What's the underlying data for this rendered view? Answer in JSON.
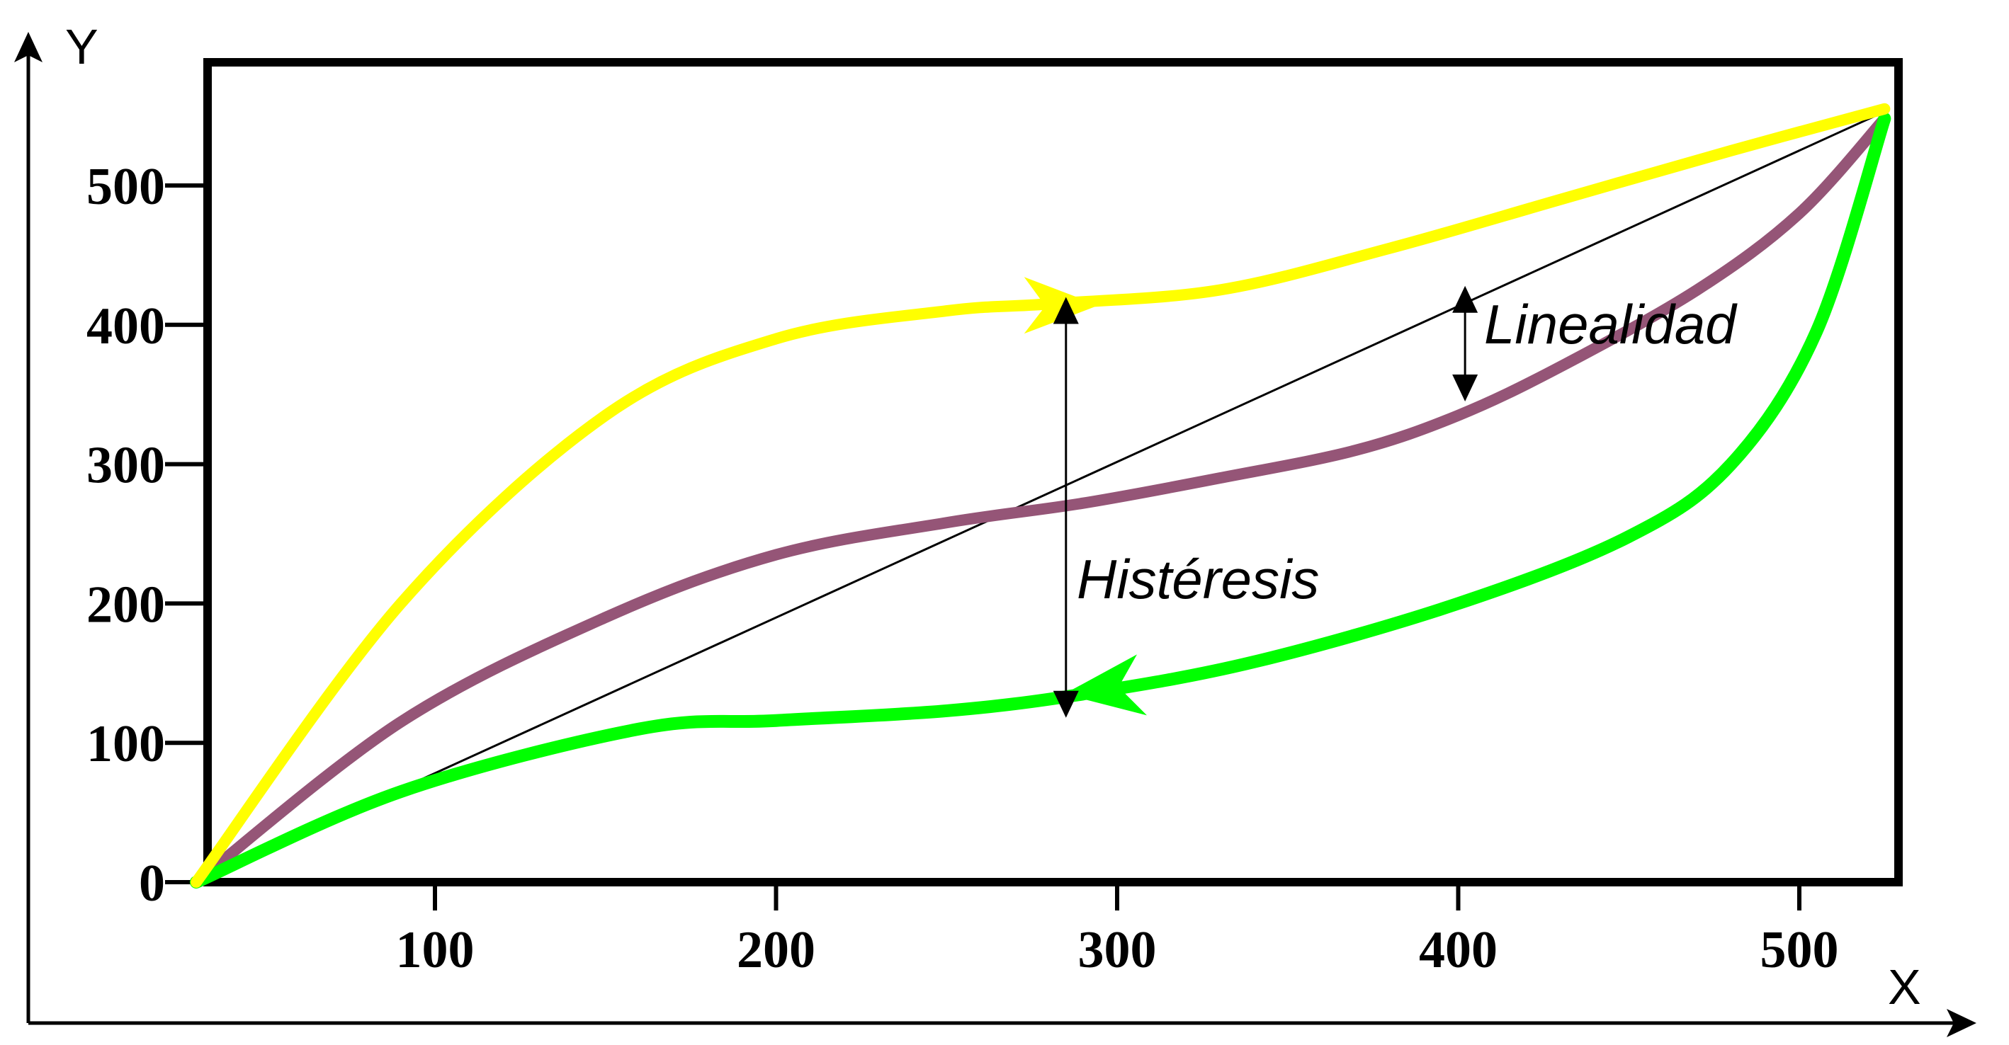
{
  "chart_data": {
    "type": "line",
    "title": "",
    "xlabel": "X",
    "ylabel": "Y",
    "xlim": [
      30,
      530
    ],
    "ylim": [
      0,
      575
    ],
    "x_ticks": [
      100,
      200,
      300,
      400,
      500
    ],
    "y_ticks": [
      0,
      100,
      200,
      300,
      400,
      500
    ],
    "grid": false,
    "legend": "none",
    "series": [
      {
        "color": "#ffff00",
        "direction": "forward",
        "x": [
          30,
          90,
          150,
          200,
          250,
          280,
          330,
          380,
          430,
          480,
          525
        ],
        "y": [
          0,
          200,
          335,
          390,
          410,
          415,
          425,
          455,
          490,
          525,
          555
        ]
      },
      {
        "color": "#955577",
        "x": [
          30,
          90,
          150,
          200,
          250,
          290,
          330,
          370,
          400,
          430,
          470,
          500,
          525
        ],
        "y": [
          0,
          115,
          190,
          235,
          258,
          272,
          290,
          310,
          335,
          370,
          425,
          480,
          548
        ]
      },
      {
        "color": "#00ff00",
        "direction": "backward",
        "x": [
          30,
          90,
          160,
          200,
          250,
          290,
          340,
          400,
          450,
          480,
          505,
          525
        ],
        "y": [
          0,
          65,
          110,
          116,
          123,
          135,
          158,
          200,
          248,
          300,
          395,
          548
        ]
      },
      {
        "color": "#000000",
        "x": [
          30,
          525
        ],
        "y": [
          0,
          553
        ]
      }
    ],
    "annotations": [
      {
        "text": "Linealidad",
        "x": 402,
        "y_from": 428,
        "y_to": 345
      },
      {
        "text": "Histéresis",
        "x": 285,
        "y_from": 420,
        "y_to": 118
      }
    ]
  }
}
